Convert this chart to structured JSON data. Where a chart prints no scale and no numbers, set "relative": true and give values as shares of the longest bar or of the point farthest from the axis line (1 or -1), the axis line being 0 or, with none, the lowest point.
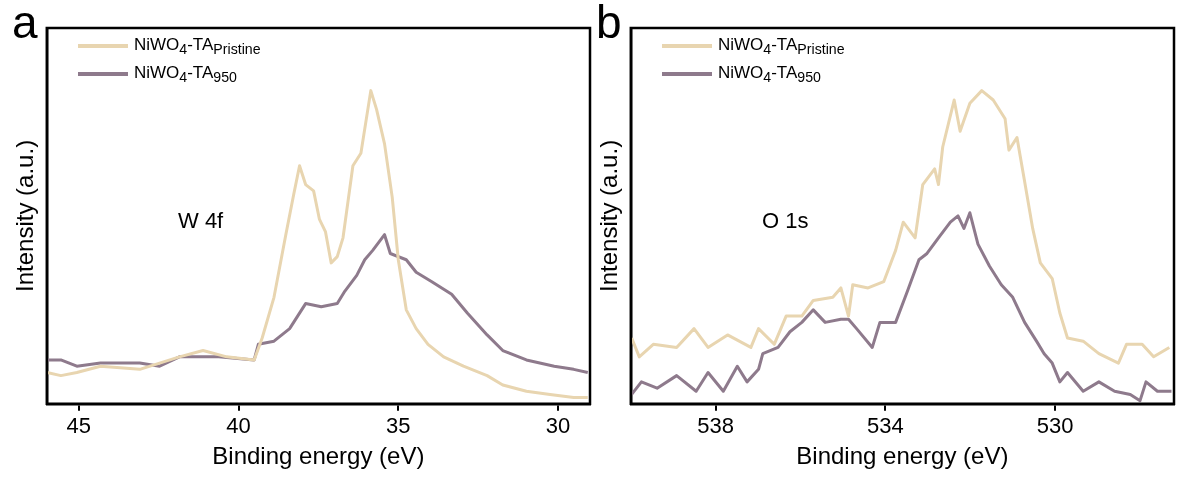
{
  "chart_data": [
    {
      "type": "line",
      "title": "a",
      "xlabel": "Binding energy (eV)",
      "ylabel": "Intensity (a.u.)",
      "relative": true,
      "xlim": [
        46,
        29
      ],
      "xticks": [
        45,
        40,
        35,
        30
      ],
      "legend": "top left",
      "grid": false,
      "marker": "none",
      "annotations": [
        "W 4f"
      ],
      "series": [
        {
          "name": "NiWO$_{4}$-TA$_{Pristine}$",
          "color": "#e8d5b0",
          "x": [
            45.99,
            45.56,
            45.06,
            44.32,
            43.09,
            41.85,
            41.11,
            40.37,
            39.51,
            39.26,
            38.89,
            38.52,
            38.27,
            38.09,
            37.9,
            37.65,
            37.47,
            37.28,
            37.1,
            36.91,
            36.73,
            36.42,
            36.17,
            35.86,
            35.68,
            35.43,
            35.19,
            35.0,
            34.75,
            34.44,
            34.07,
            33.58,
            32.96,
            32.22,
            31.73,
            30.99,
            30.25,
            29.51,
            29.07
          ],
          "values": [
            0.1,
            0.09,
            0.1,
            0.12,
            0.11,
            0.15,
            0.17,
            0.15,
            0.14,
            0.21,
            0.34,
            0.54,
            0.67,
            0.76,
            0.7,
            0.68,
            0.59,
            0.55,
            0.45,
            0.47,
            0.53,
            0.76,
            0.8,
            1.0,
            0.94,
            0.83,
            0.66,
            0.46,
            0.3,
            0.24,
            0.19,
            0.15,
            0.12,
            0.09,
            0.06,
            0.04,
            0.03,
            0.02,
            0.02
          ]
        },
        {
          "name": "NiWO$_{4}$-TA$_{950}$",
          "color": "#8e7a8c",
          "x": [
            45.99,
            45.56,
            45.06,
            44.32,
            43.09,
            42.47,
            41.85,
            40.62,
            39.51,
            39.38,
            38.89,
            38.4,
            38.15,
            37.9,
            37.41,
            36.91,
            36.67,
            36.3,
            36.05,
            35.8,
            35.43,
            35.25,
            34.75,
            34.44,
            33.95,
            33.33,
            32.84,
            32.22,
            31.73,
            30.99,
            30.12,
            29.51,
            29.07
          ],
          "values": [
            0.14,
            0.14,
            0.12,
            0.13,
            0.13,
            0.12,
            0.15,
            0.15,
            0.14,
            0.19,
            0.2,
            0.24,
            0.28,
            0.32,
            0.31,
            0.32,
            0.36,
            0.41,
            0.46,
            0.49,
            0.54,
            0.48,
            0.46,
            0.42,
            0.39,
            0.35,
            0.29,
            0.22,
            0.17,
            0.14,
            0.12,
            0.11,
            0.1
          ]
        }
      ]
    },
    {
      "type": "line",
      "title": "b",
      "xlabel": "Binding energy (eV)",
      "ylabel": "Intensity (a.u.)",
      "relative": true,
      "xlim": [
        540,
        527.2
      ],
      "xticks": [
        538,
        534,
        530
      ],
      "legend": "top left",
      "grid": false,
      "marker": "none",
      "annotations": [
        "O 1s"
      ],
      "series": [
        {
          "name": "NiWO$_{4}$-TA$_{Pristine}$",
          "color": "#e8d5b0",
          "x": [
            539.98,
            539.8,
            539.47,
            538.92,
            538.51,
            538.18,
            537.72,
            537.17,
            536.99,
            536.62,
            536.34,
            535.97,
            535.7,
            535.24,
            535.05,
            534.87,
            534.77,
            534.41,
            534.04,
            533.76,
            533.58,
            533.3,
            533.12,
            532.84,
            532.75,
            532.65,
            532.38,
            532.24,
            532.01,
            531.73,
            531.46,
            531.18,
            531.09,
            530.9,
            530.72,
            530.53,
            530.35,
            530.07,
            529.89,
            529.71,
            529.34,
            528.97,
            528.51,
            528.32,
            527.95,
            527.68,
            527.31
          ],
          "values": [
            0.21,
            0.15,
            0.19,
            0.18,
            0.24,
            0.18,
            0.22,
            0.18,
            0.24,
            0.19,
            0.28,
            0.28,
            0.33,
            0.34,
            0.37,
            0.28,
            0.38,
            0.37,
            0.39,
            0.49,
            0.58,
            0.53,
            0.7,
            0.75,
            0.7,
            0.82,
            0.97,
            0.87,
            0.96,
            1.0,
            0.97,
            0.91,
            0.81,
            0.85,
            0.71,
            0.56,
            0.45,
            0.4,
            0.29,
            0.21,
            0.2,
            0.16,
            0.13,
            0.19,
            0.19,
            0.15,
            0.18
          ]
        },
        {
          "name": "NiWO$_{4}$-TA$_{950}$",
          "color": "#8e7a8c",
          "x": [
            539.98,
            539.75,
            539.38,
            538.92,
            538.46,
            538.18,
            537.82,
            537.49,
            537.26,
            536.99,
            536.89,
            536.53,
            536.25,
            535.97,
            535.7,
            535.42,
            535.05,
            534.87,
            534.68,
            534.31,
            534.13,
            533.76,
            533.48,
            533.21,
            533.02,
            532.75,
            532.47,
            532.29,
            532.15,
            532.01,
            531.82,
            531.55,
            531.27,
            531.0,
            530.72,
            530.44,
            530.26,
            530.07,
            529.89,
            529.71,
            529.34,
            528.97,
            528.6,
            528.23,
            528.0,
            527.86,
            527.59,
            527.26
          ],
          "values": [
            0.03,
            0.07,
            0.05,
            0.09,
            0.04,
            0.1,
            0.04,
            0.12,
            0.07,
            0.11,
            0.16,
            0.18,
            0.23,
            0.26,
            0.3,
            0.26,
            0.27,
            0.27,
            0.24,
            0.18,
            0.26,
            0.26,
            0.36,
            0.46,
            0.48,
            0.53,
            0.58,
            0.6,
            0.56,
            0.61,
            0.51,
            0.44,
            0.38,
            0.34,
            0.26,
            0.2,
            0.16,
            0.13,
            0.07,
            0.1,
            0.04,
            0.07,
            0.04,
            0.03,
            0.01,
            0.07,
            0.04,
            0.04
          ]
        }
      ]
    }
  ]
}
